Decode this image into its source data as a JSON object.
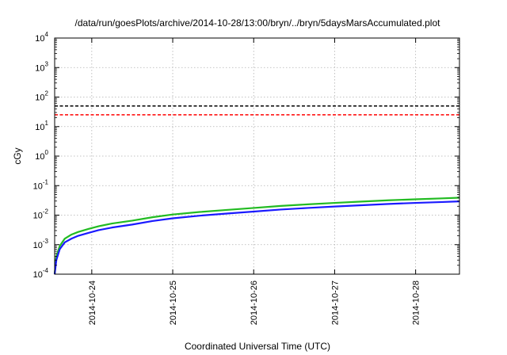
{
  "chart_data": {
    "type": "line",
    "title": "/data/run/goesPlots/archive/2014-10-28/13:00/bryn/../bryn/5daysMarsAccumulated.plot",
    "xlabel": "Coordinated Universal Time (UTC)",
    "ylabel": "cGy",
    "yscale": "log",
    "ylim": [
      0.0001,
      10000
    ],
    "yticks": [
      {
        "value": 0.0001,
        "base": "10",
        "exp": "-4"
      },
      {
        "value": 0.001,
        "base": "10",
        "exp": "-3"
      },
      {
        "value": 0.01,
        "base": "10",
        "exp": "-2"
      },
      {
        "value": 0.1,
        "base": "10",
        "exp": "-1"
      },
      {
        "value": 1,
        "base": "10",
        "exp": "0"
      },
      {
        "value": 10,
        "base": "10",
        "exp": "1"
      },
      {
        "value": 100,
        "base": "10",
        "exp": "2"
      },
      {
        "value": 1000,
        "base": "10",
        "exp": "3"
      },
      {
        "value": 10000,
        "base": "10",
        "exp": "4"
      }
    ],
    "xlim": [
      "2014-10-23 13:00",
      "2014-10-28 13:00"
    ],
    "xticks": [
      "2014-10-24",
      "2014-10-25",
      "2014-10-26",
      "2014-10-27",
      "2014-10-28"
    ],
    "grid": true,
    "reference_lines": [
      {
        "value": 50,
        "color": "#000000",
        "style": "dashed"
      },
      {
        "value": 25,
        "color": "#ff0000",
        "style": "dashed"
      }
    ],
    "series": [
      {
        "color": "#22bb22",
        "x": [
          "2014-10-23 13:00",
          "2014-10-23 13:30",
          "2014-10-23 14:30",
          "2014-10-23 16:00",
          "2014-10-23 18:00",
          "2014-10-23 20:00",
          "2014-10-23 23:00",
          "2014-10-24 02:00",
          "2014-10-24 06:00",
          "2014-10-24 12:00",
          "2014-10-24 18:00",
          "2014-10-25 00:00",
          "2014-10-25 08:00",
          "2014-10-25 16:00",
          "2014-10-26 00:00",
          "2014-10-26 08:00",
          "2014-10-26 16:00",
          "2014-10-27 00:00",
          "2014-10-27 08:00",
          "2014-10-27 16:00",
          "2014-10-28 00:00",
          "2014-10-28 08:00",
          "2014-10-28 13:00"
        ],
        "y": [
          0.0001,
          0.0004,
          0.0009,
          0.0016,
          0.0022,
          0.0027,
          0.0034,
          0.0042,
          0.0052,
          0.0065,
          0.0085,
          0.0105,
          0.0128,
          0.015,
          0.0175,
          0.0205,
          0.0232,
          0.026,
          0.0288,
          0.0318,
          0.0345,
          0.037,
          0.039
        ]
      },
      {
        "color": "#1a1aff",
        "x": [
          "2014-10-23 13:00",
          "2014-10-23 13:30",
          "2014-10-23 14:30",
          "2014-10-23 16:00",
          "2014-10-23 18:00",
          "2014-10-23 20:00",
          "2014-10-23 23:00",
          "2014-10-24 02:00",
          "2014-10-24 06:00",
          "2014-10-24 12:00",
          "2014-10-24 18:00",
          "2014-10-25 00:00",
          "2014-10-25 08:00",
          "2014-10-25 16:00",
          "2014-10-26 00:00",
          "2014-10-26 08:00",
          "2014-10-26 16:00",
          "2014-10-27 00:00",
          "2014-10-27 08:00",
          "2014-10-27 16:00",
          "2014-10-28 00:00",
          "2014-10-28 08:00",
          "2014-10-28 13:00"
        ],
        "y": [
          0.0001,
          0.0003,
          0.0007,
          0.0012,
          0.0016,
          0.002,
          0.0025,
          0.0031,
          0.0038,
          0.0048,
          0.0063,
          0.0078,
          0.0096,
          0.0113,
          0.0132,
          0.0155,
          0.0175,
          0.0196,
          0.0217,
          0.024,
          0.026,
          0.0278,
          0.0292
        ]
      }
    ]
  }
}
